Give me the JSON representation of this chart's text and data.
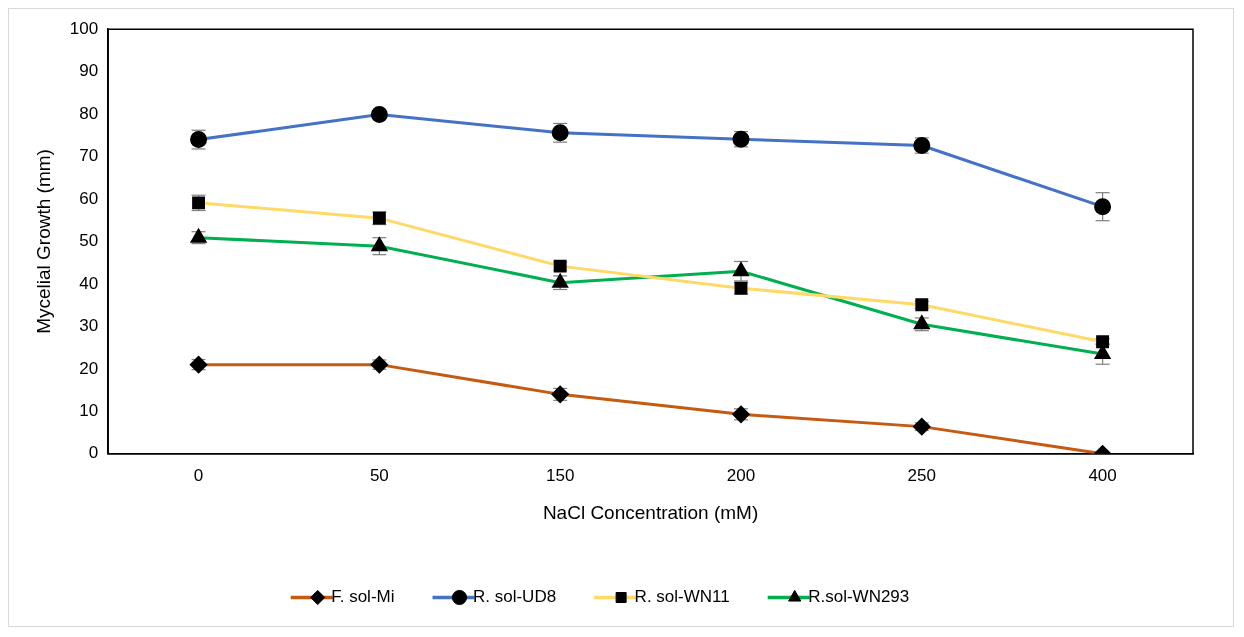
{
  "chart_data": {
    "type": "line",
    "xlabel": "NaCl Concentration (mM)",
    "ylabel": "Mycelial Growth (mm)",
    "categories": [
      "0",
      "50",
      "150",
      "200",
      "250",
      "400"
    ],
    "ylim": [
      0,
      100
    ],
    "yticks": [
      0,
      10,
      20,
      30,
      40,
      50,
      60,
      70,
      80,
      90,
      100
    ],
    "grid": false,
    "legend": "bottom",
    "line_style": "solid",
    "series": [
      {
        "name": "F. sol-Mi",
        "color": "#c55a11",
        "marker": "diamond",
        "values": [
          21,
          21,
          14,
          9.3,
          6.4,
          0
        ],
        "errors": [
          1.2,
          1.1,
          1.4,
          1.3,
          0.9,
          null
        ]
      },
      {
        "name": "R. sol-UD8",
        "color": "#4472c4",
        "marker": "circle",
        "values": [
          74,
          79.9,
          75.6,
          74.1,
          72.6,
          58.2
        ],
        "errors": [
          2.2,
          0.5,
          2.2,
          1.8,
          1.8,
          3.3
        ]
      },
      {
        "name": "R. sol-WN11",
        "color": "#ffd966",
        "marker": "square",
        "values": [
          59.1,
          55.5,
          44.2,
          39,
          35.1,
          26.4
        ],
        "errors": [
          1.8,
          1.5,
          1,
          1.3,
          0.8,
          0.7
        ]
      },
      {
        "name": "R.sol-WN293",
        "color": "#00b050",
        "marker": "triangle",
        "values": [
          50.9,
          48.9,
          40.3,
          43,
          30.5,
          23.5
        ],
        "errors": [
          1.4,
          2,
          1.6,
          2.3,
          1.5,
          2.4
        ]
      }
    ]
  }
}
